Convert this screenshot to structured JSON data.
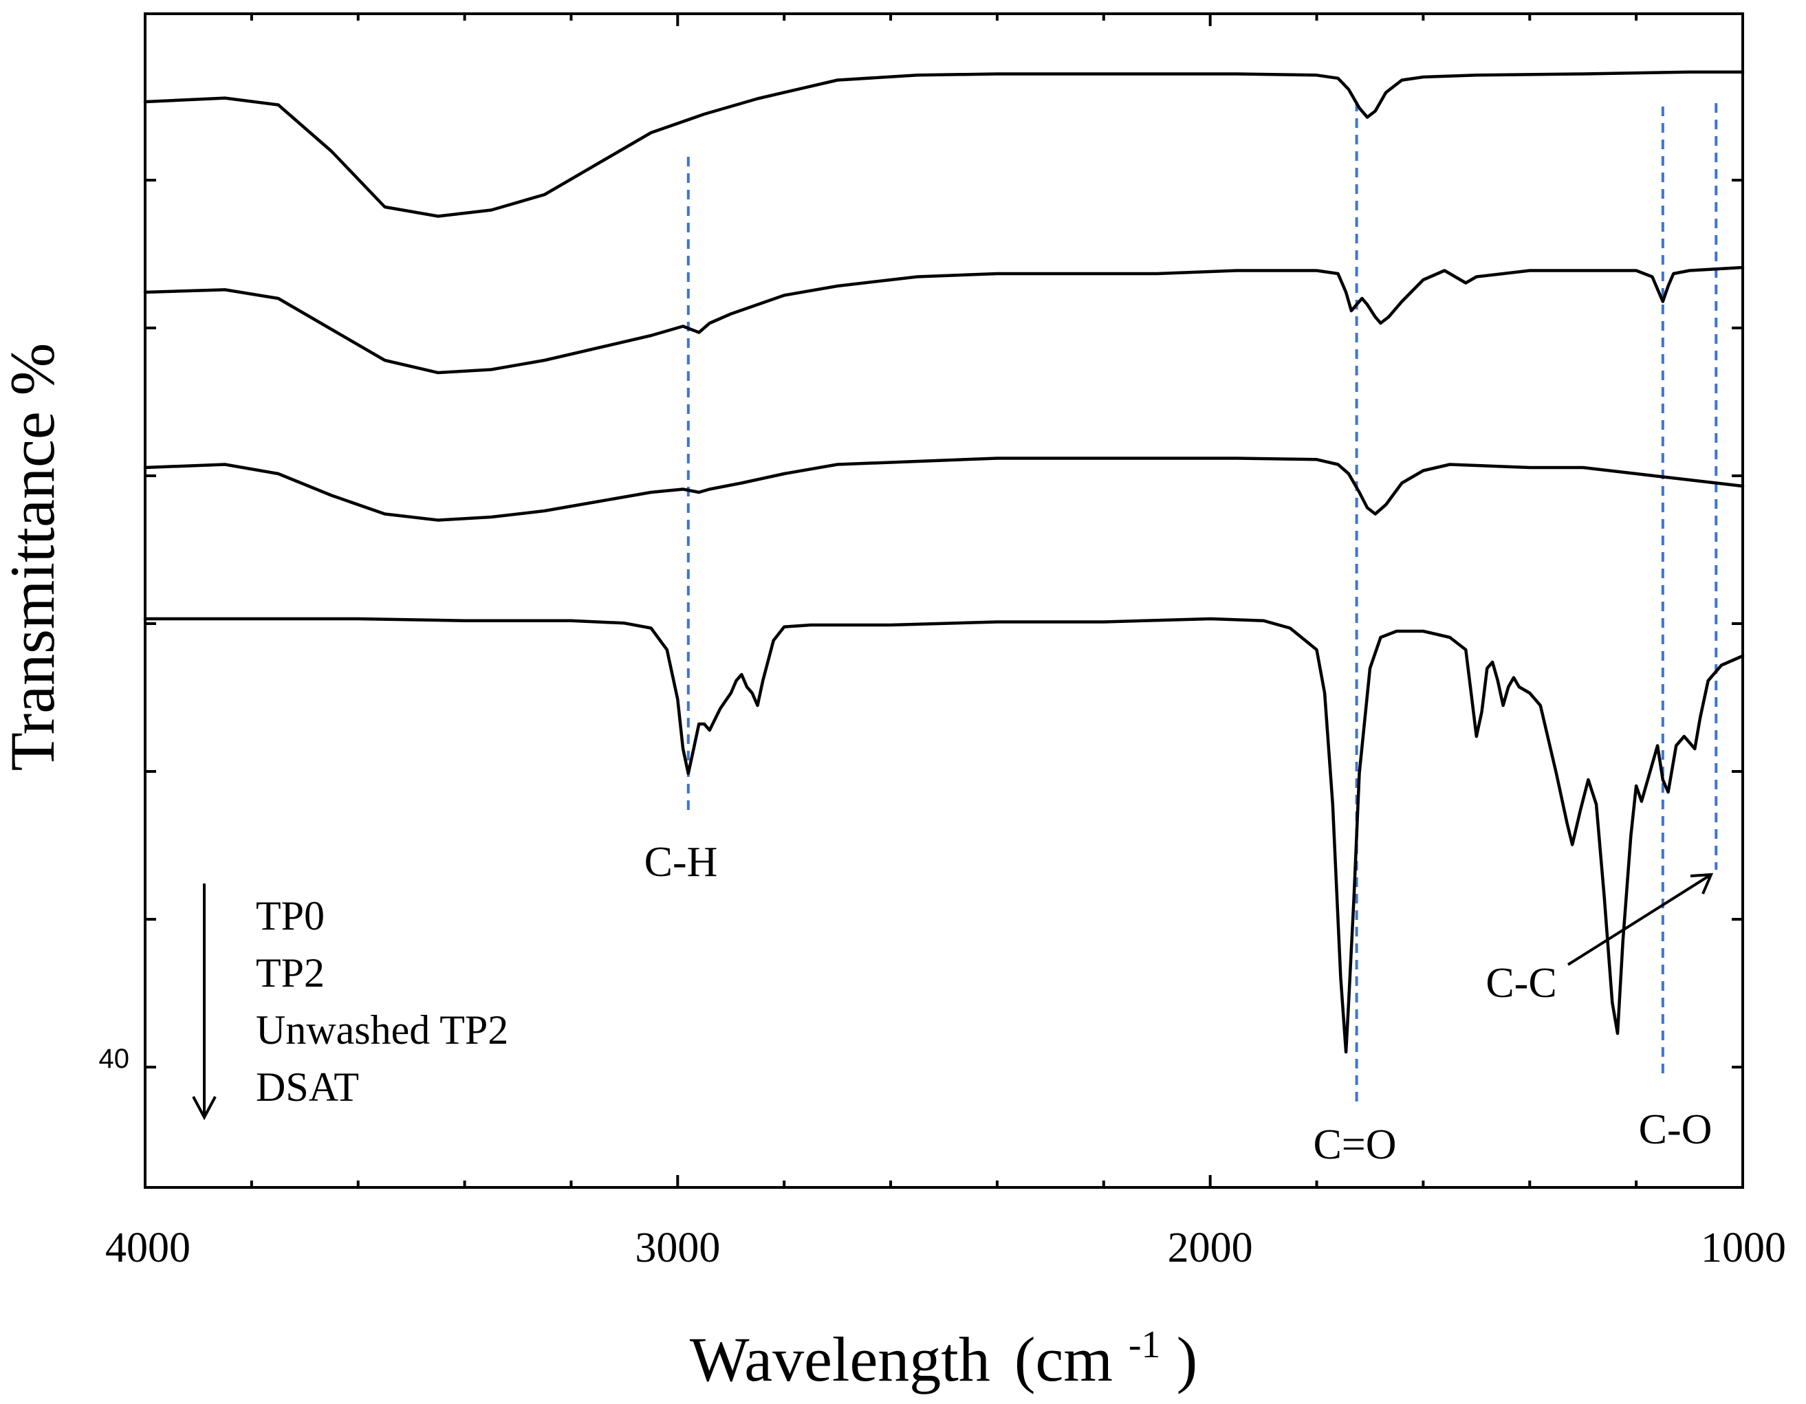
{
  "chart_data": {
    "type": "line",
    "title": "",
    "xlabel": "Wavelength",
    "xlabel_unit": "(cm",
    "xlabel_unit_sup": "-1",
    "xlabel_unit_close": ")",
    "ylabel": "Transmittance  %",
    "xlim": [
      4000,
      1000
    ],
    "x_reversed": true,
    "x_ticks": [
      "4000",
      "3000",
      "2000",
      "1000"
    ],
    "y_tick_label": "40",
    "grid": false,
    "legend": {
      "placement": "bottom-left",
      "arrow": "down",
      "entries": [
        "TP0",
        "TP2",
        "Unwashed TP2",
        "DSAT"
      ]
    },
    "series": [
      {
        "name": "TP0",
        "baseline": 88,
        "points": [
          [
            4000,
            88
          ],
          [
            3850,
            88.6
          ],
          [
            3750,
            87.5
          ],
          [
            3650,
            80
          ],
          [
            3550,
            71
          ],
          [
            3450,
            69.5
          ],
          [
            3350,
            70.5
          ],
          [
            3250,
            73
          ],
          [
            3150,
            78
          ],
          [
            3050,
            83
          ],
          [
            2950,
            86
          ],
          [
            2850,
            88.5
          ],
          [
            2700,
            91.5
          ],
          [
            2550,
            92.3
          ],
          [
            2400,
            92.5
          ],
          [
            2250,
            92.5
          ],
          [
            2100,
            92.5
          ],
          [
            1950,
            92.5
          ],
          [
            1800,
            92.3
          ],
          [
            1760,
            91.8
          ],
          [
            1740,
            90
          ],
          [
            1720,
            87
          ],
          [
            1705,
            85.5
          ],
          [
            1690,
            86.5
          ],
          [
            1670,
            89.5
          ],
          [
            1640,
            91.5
          ],
          [
            1600,
            92
          ],
          [
            1500,
            92.3
          ],
          [
            1300,
            92.5
          ],
          [
            1100,
            92.8
          ],
          [
            1000,
            92.8
          ]
        ]
      },
      {
        "name": "TP2",
        "baseline": 0,
        "points": [
          [
            4000,
            0
          ],
          [
            3850,
            0.4
          ],
          [
            3750,
            -1
          ],
          [
            3650,
            -6
          ],
          [
            3550,
            -11
          ],
          [
            3450,
            -13
          ],
          [
            3350,
            -12.5
          ],
          [
            3250,
            -11
          ],
          [
            3150,
            -9
          ],
          [
            3050,
            -7
          ],
          [
            2990,
            -5.5
          ],
          [
            2960,
            -6.5
          ],
          [
            2940,
            -5
          ],
          [
            2900,
            -3.5
          ],
          [
            2850,
            -2
          ],
          [
            2800,
            -0.5
          ],
          [
            2700,
            1
          ],
          [
            2550,
            2.5
          ],
          [
            2400,
            3
          ],
          [
            2250,
            3
          ],
          [
            2100,
            3
          ],
          [
            1950,
            3.5
          ],
          [
            1800,
            3.5
          ],
          [
            1760,
            3
          ],
          [
            1745,
            0
          ],
          [
            1735,
            -3
          ],
          [
            1725,
            -2
          ],
          [
            1715,
            -1
          ],
          [
            1705,
            -2
          ],
          [
            1690,
            -4
          ],
          [
            1680,
            -5
          ],
          [
            1665,
            -4
          ],
          [
            1640,
            -1.5
          ],
          [
            1600,
            2
          ],
          [
            1560,
            3.5
          ],
          [
            1520,
            1.5
          ],
          [
            1500,
            2.5
          ],
          [
            1400,
            3.5
          ],
          [
            1300,
            3.5
          ],
          [
            1200,
            3.5
          ],
          [
            1170,
            2.5
          ],
          [
            1160,
            0.5
          ],
          [
            1150,
            -1.5
          ],
          [
            1140,
            1
          ],
          [
            1130,
            3
          ],
          [
            1100,
            3.5
          ],
          [
            1000,
            4
          ]
        ]
      },
      {
        "name": "Unwashed TP2",
        "baseline": 0,
        "points": [
          [
            4000,
            0
          ],
          [
            3850,
            0.5
          ],
          [
            3750,
            -1
          ],
          [
            3650,
            -4.5
          ],
          [
            3550,
            -7.5
          ],
          [
            3450,
            -8.5
          ],
          [
            3350,
            -8
          ],
          [
            3250,
            -7
          ],
          [
            3150,
            -5.5
          ],
          [
            3050,
            -4
          ],
          [
            2990,
            -3.5
          ],
          [
            2960,
            -4
          ],
          [
            2940,
            -3.5
          ],
          [
            2880,
            -2.5
          ],
          [
            2800,
            -1
          ],
          [
            2700,
            0.5
          ],
          [
            2550,
            1
          ],
          [
            2400,
            1.5
          ],
          [
            2250,
            1.5
          ],
          [
            2100,
            1.5
          ],
          [
            1950,
            1.5
          ],
          [
            1800,
            1.3
          ],
          [
            1760,
            0.5
          ],
          [
            1740,
            -1
          ],
          [
            1720,
            -4
          ],
          [
            1705,
            -6.5
          ],
          [
            1690,
            -7.5
          ],
          [
            1670,
            -6
          ],
          [
            1640,
            -2.5
          ],
          [
            1600,
            -0.5
          ],
          [
            1550,
            0.5
          ],
          [
            1400,
            0
          ],
          [
            1300,
            0
          ],
          [
            1200,
            -1
          ],
          [
            1150,
            -1.5
          ],
          [
            1100,
            -2
          ],
          [
            1000,
            -3
          ]
        ]
      },
      {
        "name": "DSAT",
        "baseline": 0,
        "points": [
          [
            4000,
            0
          ],
          [
            3800,
            0
          ],
          [
            3600,
            0
          ],
          [
            3400,
            -0.3
          ],
          [
            3200,
            -0.3
          ],
          [
            3100,
            -0.7
          ],
          [
            3050,
            -1.5
          ],
          [
            3020,
            -5
          ],
          [
            3000,
            -13
          ],
          [
            2990,
            -21
          ],
          [
            2980,
            -25
          ],
          [
            2970,
            -21
          ],
          [
            2960,
            -17
          ],
          [
            2950,
            -17
          ],
          [
            2940,
            -18
          ],
          [
            2920,
            -14.5
          ],
          [
            2900,
            -12
          ],
          [
            2890,
            -10
          ],
          [
            2880,
            -9
          ],
          [
            2870,
            -11
          ],
          [
            2860,
            -12
          ],
          [
            2850,
            -14
          ],
          [
            2840,
            -10
          ],
          [
            2820,
            -3.5
          ],
          [
            2800,
            -1.3
          ],
          [
            2750,
            -1
          ],
          [
            2600,
            -1
          ],
          [
            2400,
            -0.5
          ],
          [
            2200,
            -0.5
          ],
          [
            2000,
            0
          ],
          [
            1900,
            -0.3
          ],
          [
            1850,
            -1.5
          ],
          [
            1800,
            -5
          ],
          [
            1785,
            -12
          ],
          [
            1770,
            -30
          ],
          [
            1755,
            -58
          ],
          [
            1745,
            -70
          ],
          [
            1740,
            -62
          ],
          [
            1730,
            -45
          ],
          [
            1720,
            -25
          ],
          [
            1700,
            -8
          ],
          [
            1680,
            -3
          ],
          [
            1650,
            -2
          ],
          [
            1600,
            -2
          ],
          [
            1550,
            -3
          ],
          [
            1520,
            -5
          ],
          [
            1510,
            -12
          ],
          [
            1500,
            -19
          ],
          [
            1490,
            -15
          ],
          [
            1480,
            -8
          ],
          [
            1470,
            -7
          ],
          [
            1460,
            -10
          ],
          [
            1450,
            -14
          ],
          [
            1440,
            -11
          ],
          [
            1430,
            -9.5
          ],
          [
            1420,
            -11
          ],
          [
            1400,
            -12
          ],
          [
            1380,
            -14
          ],
          [
            1350,
            -25
          ],
          [
            1330,
            -33
          ],
          [
            1320,
            -36.5
          ],
          [
            1305,
            -31
          ],
          [
            1290,
            -26
          ],
          [
            1275,
            -30
          ],
          [
            1260,
            -45
          ],
          [
            1245,
            -62
          ],
          [
            1235,
            -67
          ],
          [
            1225,
            -52
          ],
          [
            1210,
            -35
          ],
          [
            1200,
            -27
          ],
          [
            1190,
            -29.5
          ],
          [
            1175,
            -25
          ],
          [
            1160,
            -20.5
          ],
          [
            1150,
            -26
          ],
          [
            1140,
            -28
          ],
          [
            1125,
            -20.5
          ],
          [
            1110,
            -19
          ],
          [
            1090,
            -21
          ],
          [
            1080,
            -16
          ],
          [
            1065,
            -10
          ],
          [
            1040,
            -7.5
          ],
          [
            1000,
            -6
          ]
        ]
      }
    ],
    "annotations": [
      {
        "label": "C-H",
        "x": 2980,
        "line_top_series": "TP0",
        "line_top_x": 2980
      },
      {
        "label": "C=O",
        "x": 1725,
        "line_top_series": "TP0",
        "line_top_x": 1725
      },
      {
        "label": "C-O",
        "x": 1150,
        "line_top_series": "TP0",
        "line_top_x": 1150
      },
      {
        "label": "C-C",
        "x": 1050,
        "line_top_series": "TP0",
        "line_top_x": 1050
      }
    ]
  }
}
